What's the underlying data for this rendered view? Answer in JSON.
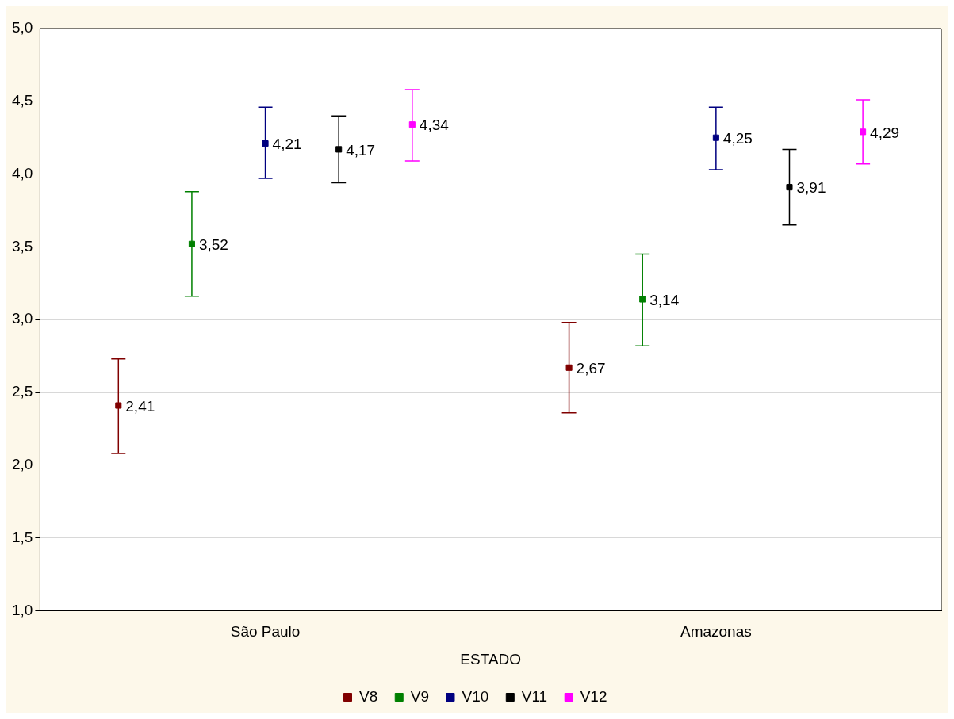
{
  "chart_data": {
    "type": "scatter",
    "xlabel": "ESTADO",
    "categories": [
      "São Paulo",
      "Amazonas"
    ],
    "series": [
      {
        "name": "V8",
        "color": "#800000",
        "values": [
          2.41,
          2.67
        ],
        "value_labels": [
          "2,41",
          "2,67"
        ],
        "errors": [
          [
            2.08,
            2.73
          ],
          [
            2.36,
            2.98
          ]
        ]
      },
      {
        "name": "V9",
        "color": "#008000",
        "values": [
          3.52,
          3.14
        ],
        "value_labels": [
          "3,52",
          "3,14"
        ],
        "errors": [
          [
            3.16,
            3.88
          ],
          [
            2.82,
            3.45
          ]
        ]
      },
      {
        "name": "V10",
        "color": "#000080",
        "values": [
          4.21,
          4.25
        ],
        "value_labels": [
          "4,21",
          "4,25"
        ],
        "errors": [
          [
            3.97,
            4.46
          ],
          [
            4.03,
            4.46
          ]
        ]
      },
      {
        "name": "V11",
        "color": "#000000",
        "values": [
          4.17,
          3.91
        ],
        "value_labels": [
          "4,17",
          "3,91"
        ],
        "errors": [
          [
            3.94,
            4.4
          ],
          [
            3.65,
            4.17
          ]
        ]
      },
      {
        "name": "V12",
        "color": "#ff00ff",
        "values": [
          4.34,
          4.29
        ],
        "value_labels": [
          "4,34",
          "4,29"
        ],
        "errors": [
          [
            4.09,
            4.58
          ],
          [
            4.07,
            4.51
          ]
        ]
      }
    ],
    "ylim": [
      1,
      5
    ],
    "yticks": [
      {
        "value": 1,
        "label": "1,0"
      },
      {
        "value": 1.5,
        "label": "1,5"
      },
      {
        "value": 2,
        "label": "2,0"
      },
      {
        "value": 2.5,
        "label": "2,5"
      },
      {
        "value": 3,
        "label": "3,0"
      },
      {
        "value": 3.5,
        "label": "3,5"
      },
      {
        "value": 4,
        "label": "4,0"
      },
      {
        "value": 4.5,
        "label": "4,5"
      },
      {
        "value": 5,
        "label": "5,0"
      }
    ],
    "grid": "y",
    "legend": "bottom",
    "marker": "square"
  }
}
